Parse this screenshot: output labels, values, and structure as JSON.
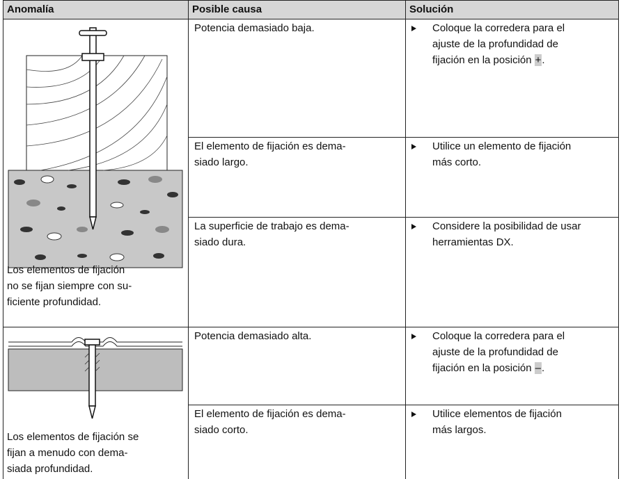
{
  "table": {
    "headers": [
      "Anomalía",
      "Posible causa",
      "Solución"
    ],
    "groups": [
      {
        "anomaly": [
          "Los elementos de fijación",
          "no se fijan siempre con su-",
          "ficiente profundidad."
        ],
        "rows": [
          {
            "cause": [
              "Potencia demasiado baja."
            ],
            "solution": {
              "lines": [
                "Coloque la corredera para el",
                "ajuste de la profundidad de"
              ],
              "key_line": {
                "before": "fijación en la posición",
                "key": "+",
                "after": "."
              }
            }
          },
          {
            "cause": [
              "El elemento de fijación es dema-",
              "siado largo."
            ],
            "solution": {
              "lines": [
                "Utilice un elemento de fijación",
                "más corto."
              ]
            }
          },
          {
            "cause": [
              "La superficie de trabajo es dema-",
              "siado dura."
            ],
            "solution": {
              "lines": [
                "Considere la posibilidad de usar",
                "herramientas DX."
              ]
            }
          }
        ]
      },
      {
        "anomaly": [
          "Los elementos de fijación se",
          "fijan a menudo con dema-",
          "siada profundidad."
        ],
        "rows": [
          {
            "cause": [
              "Potencia demasiado alta."
            ],
            "solution": {
              "lines": [
                "Coloque la corredera para el",
                "ajuste de la profundidad de"
              ],
              "key_line": {
                "before": "fijación en la posición",
                "key": "–",
                "after": "."
              }
            }
          },
          {
            "cause": [
              "El elemento de fijación es dema-",
              "siado corto."
            ],
            "solution": {
              "lines": [
                "Utilice elementos de fijación",
                "más largos."
              ]
            }
          }
        ]
      }
    ]
  }
}
